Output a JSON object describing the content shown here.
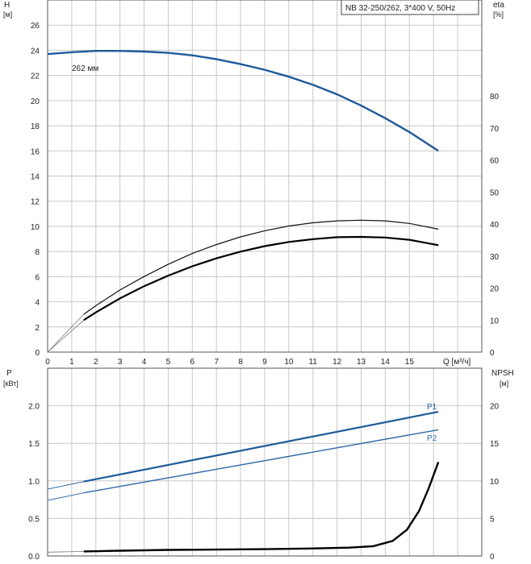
{
  "chart_data": [
    {
      "type": "line",
      "title": "NB 32-250/262, 3*400 V, 50Hz",
      "xlabel": "Q [м³/ч]",
      "ylabel": "H",
      "ylabel_unit": "[м]",
      "y2label": "eta",
      "y2label_unit": "[%]",
      "xlim": [
        0,
        18
      ],
      "ylim": [
        0,
        28
      ],
      "y2lim": [
        0,
        110
      ],
      "x_ticks": [
        0,
        1,
        2,
        3,
        4,
        5,
        6,
        7,
        8,
        9,
        10,
        11,
        12,
        13,
        14,
        15
      ],
      "y_ticks": [
        0,
        2,
        4,
        6,
        8,
        10,
        12,
        14,
        16,
        18,
        20,
        22,
        24,
        26
      ],
      "y2_ticks": [
        0,
        10,
        20,
        30,
        40,
        50,
        60,
        70,
        80
      ],
      "series": [
        {
          "name": "262 мм",
          "axis": "left",
          "color": "#1f5a99",
          "x": [
            0,
            1,
            2,
            3,
            4,
            5,
            6,
            7,
            8,
            9,
            10,
            11,
            12,
            13,
            14,
            15,
            16.2
          ],
          "y": [
            23.7,
            23.85,
            23.95,
            23.95,
            23.9,
            23.8,
            23.6,
            23.3,
            22.9,
            22.45,
            21.9,
            21.25,
            20.5,
            19.6,
            18.6,
            17.5,
            16
          ]
        },
        {
          "axis": "right",
          "color": "#111111",
          "x": [
            1.5,
            2,
            3,
            4,
            5,
            6,
            7,
            8,
            9,
            10,
            11,
            12,
            13,
            14,
            15,
            16.2
          ],
          "y": [
            11.8,
            14.5,
            19.4,
            23.6,
            27.4,
            30.8,
            33.6,
            36,
            37.9,
            39.4,
            40.4,
            41,
            41.2,
            41,
            40.2,
            38.4
          ]
        },
        {
          "axis": "right",
          "color": "#000000",
          "x": [
            1.5,
            2,
            3,
            4,
            5,
            6,
            7,
            8,
            9,
            10,
            11,
            12,
            13,
            14,
            15,
            16.2
          ],
          "y": [
            10,
            12.4,
            16.8,
            20.6,
            23.9,
            26.8,
            29.3,
            31.4,
            33.1,
            34.4,
            35.3,
            35.9,
            36,
            35.8,
            35.1,
            33.4
          ]
        }
      ]
    },
    {
      "type": "line",
      "xlim": [
        0,
        18
      ],
      "ylabel": "P",
      "ylabel_unit": "[кВт]",
      "y2label": "NPSH",
      "y2label_unit": "[м]",
      "ylim": [
        0,
        2.5
      ],
      "y2lim": [
        0,
        25
      ],
      "y_ticks": [
        0.0,
        0.5,
        1.0,
        1.5,
        2.0
      ],
      "y_tick_labels": [
        "0.0",
        "0.5",
        "1.0",
        "1.5",
        "2.0"
      ],
      "y2_ticks": [
        0,
        5,
        10,
        15,
        20
      ],
      "series": [
        {
          "name": "P1",
          "axis": "left",
          "color": "#1f5a99",
          "x": [
            0,
            1.5,
            16.2
          ],
          "y": [
            0.89,
            0.99,
            1.92
          ]
        },
        {
          "name": "P2",
          "axis": "left",
          "color": "#2d6aa8",
          "x": [
            0,
            1.5,
            16.2
          ],
          "y": [
            0.74,
            0.84,
            1.68
          ]
        },
        {
          "axis": "right",
          "color": "#000000",
          "x": [
            0,
            1.5,
            3,
            5,
            7,
            9,
            11,
            12.5,
            13.5,
            14.3,
            14.9,
            15.4,
            15.8,
            16.2
          ],
          "y": [
            0.5,
            0.6,
            0.7,
            0.8,
            0.85,
            0.9,
            1.0,
            1.1,
            1.3,
            2.0,
            3.5,
            6.0,
            9.0,
            12.5
          ]
        }
      ]
    }
  ]
}
